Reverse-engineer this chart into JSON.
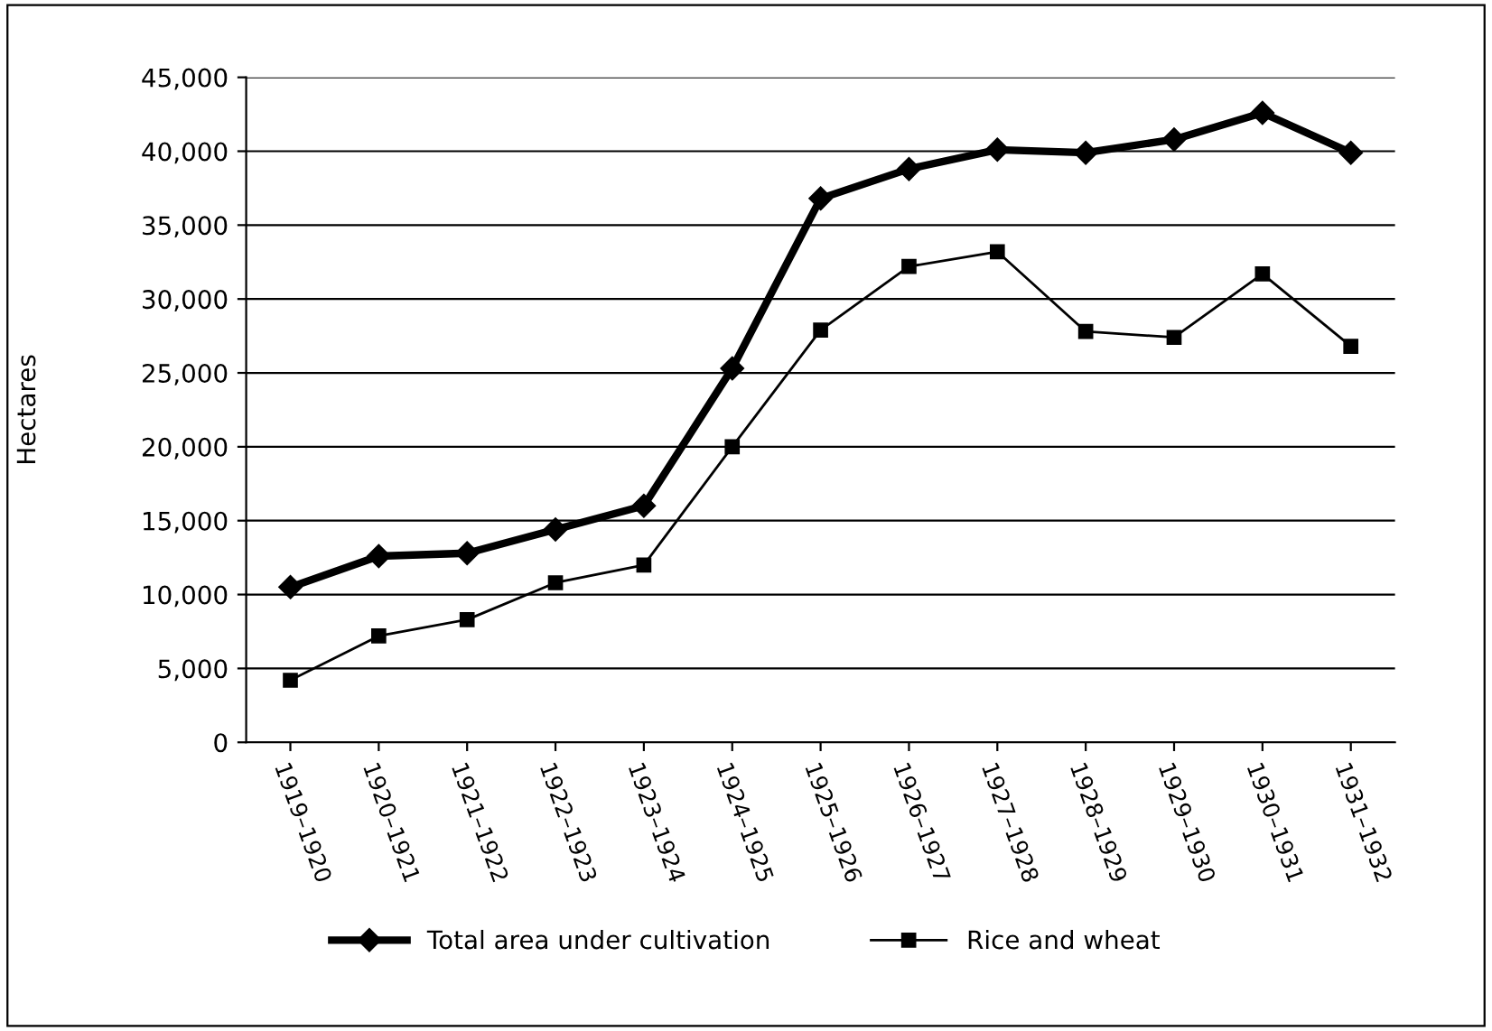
{
  "chart_data": {
    "type": "line",
    "ylabel": "Hectares",
    "categories": [
      "1919–1920",
      "1920–1921",
      "1921–1922",
      "1922–1923",
      "1923–1924",
      "1924–1925",
      "1925–1926",
      "1926–1927",
      "1927–1928",
      "1928–1929",
      "1929–1930",
      "1930–1931",
      "1931–1932"
    ],
    "series": [
      {
        "name": "Total area under cultivation",
        "color": "#000000",
        "marker": "diamond",
        "values": [
          10500,
          12600,
          12800,
          14400,
          16000,
          25300,
          36800,
          38800,
          40100,
          39900,
          40800,
          42600,
          39900
        ]
      },
      {
        "name": "Rice and wheat",
        "color": "#000000",
        "marker": "square",
        "values": [
          4200,
          7200,
          8300,
          10800,
          12000,
          20000,
          27900,
          32200,
          33200,
          27800,
          27400,
          31700,
          26800
        ]
      }
    ],
    "ylim": [
      0,
      45000
    ],
    "yticks": [
      {
        "value": 0,
        "label": "0"
      },
      {
        "value": 5000,
        "label": "5,000"
      },
      {
        "value": 10000,
        "label": "10,000"
      },
      {
        "value": 15000,
        "label": "15,000"
      },
      {
        "value": 20000,
        "label": "20,000"
      },
      {
        "value": 25000,
        "label": "25,000"
      },
      {
        "value": 30000,
        "label": "30,000"
      },
      {
        "value": 35000,
        "label": "35,000"
      },
      {
        "value": 40000,
        "label": "40,000"
      },
      {
        "value": 45000,
        "label": "45,000"
      }
    ],
    "grid": "y",
    "legend": "bottom"
  }
}
